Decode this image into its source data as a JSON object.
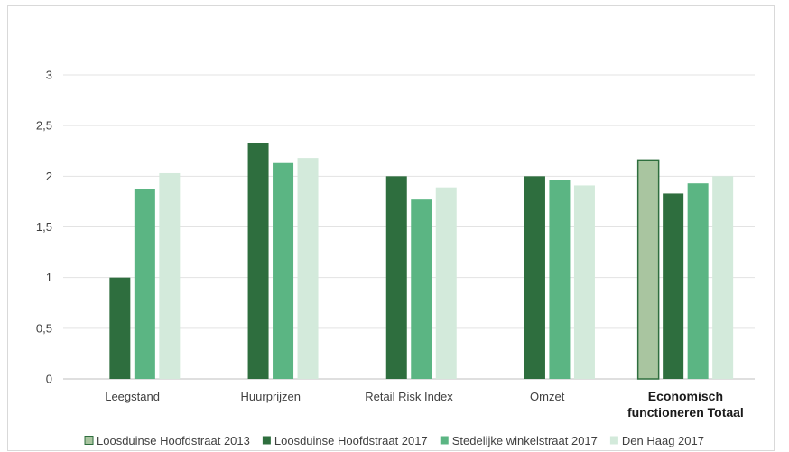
{
  "chart_data": {
    "type": "bar",
    "categories": [
      "Leegstand",
      "Huurprijzen",
      "Retail Risk Index",
      "Omzet",
      "Economisch functioneren Totaal"
    ],
    "category_lines": [
      [
        "Leegstand"
      ],
      [
        "Huurprijzen"
      ],
      [
        "Retail Risk Index"
      ],
      [
        "Omzet"
      ],
      [
        "Economisch",
        "functioneren Totaal"
      ]
    ],
    "bold_category": "Economisch functioneren Totaal",
    "series": [
      {
        "name": "Loosduinse Hoofdstraat 2013",
        "values": [
          null,
          null,
          null,
          null,
          2.16
        ],
        "color": "#a9c5a0",
        "stroke": "#2e6e3e"
      },
      {
        "name": "Loosduinse Hoofdstraat 2017",
        "values": [
          1.0,
          2.33,
          2.0,
          2.0,
          1.83
        ],
        "color": "#2e6e3e",
        "stroke": null
      },
      {
        "name": "Stedelijke winkelstraat 2017",
        "values": [
          1.87,
          2.13,
          1.77,
          1.96,
          1.93
        ],
        "color": "#5bb583",
        "stroke": null
      },
      {
        "name": "Den Haag 2017",
        "values": [
          2.03,
          2.18,
          1.89,
          1.91,
          2.0
        ],
        "color": "#d3eadb",
        "stroke": null
      }
    ],
    "y_ticks": [
      "0",
      "0,5",
      "1",
      "1,5",
      "2",
      "2,5",
      "3"
    ],
    "ylim": [
      0,
      3
    ],
    "grid": true,
    "legend_position": "bottom",
    "title": "",
    "xlabel": "",
    "ylabel": ""
  }
}
